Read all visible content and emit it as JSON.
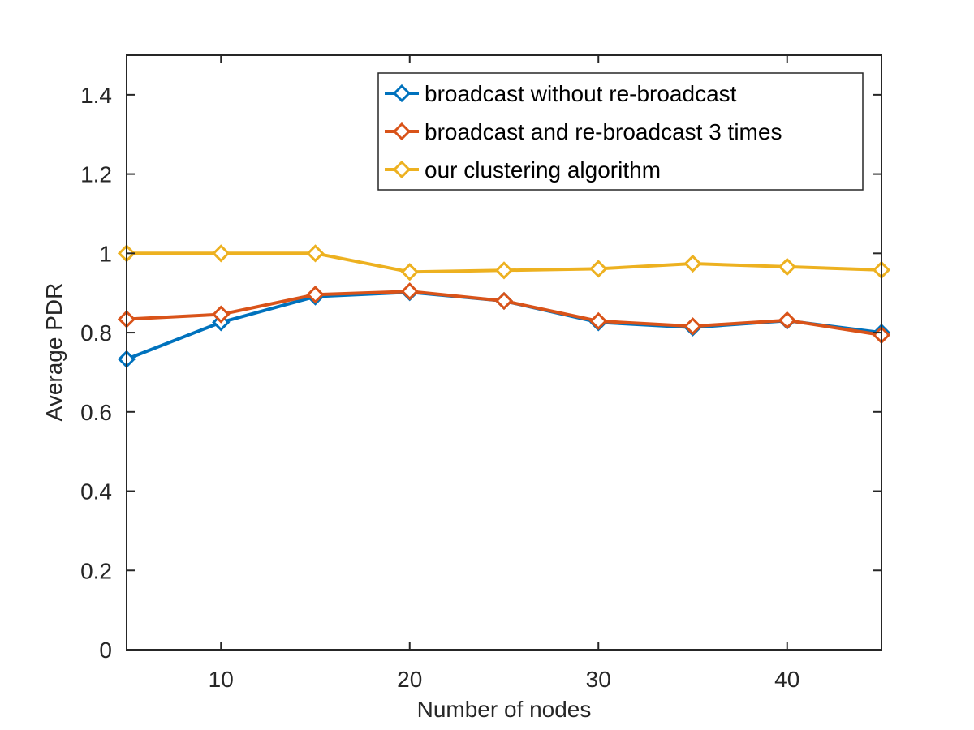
{
  "chart_data": {
    "type": "line",
    "title": "",
    "xlabel": "Number of nodes",
    "ylabel": "Average PDR",
    "xlim": [
      5,
      45
    ],
    "ylim": [
      0,
      1.5
    ],
    "xticks": [
      10,
      20,
      30,
      40
    ],
    "xtick_labels": [
      "10",
      "20",
      "30",
      "40"
    ],
    "yticks": [
      0,
      0.2,
      0.4,
      0.6,
      0.8,
      1.0,
      1.2,
      1.4
    ],
    "ytick_labels": [
      "0",
      "0.2",
      "0.4",
      "0.6",
      "0.8",
      "1",
      "1.2",
      "1.4"
    ],
    "grid": false,
    "legend_position": "top-right",
    "x": [
      5,
      10,
      15,
      20,
      25,
      30,
      35,
      40,
      45
    ],
    "series": [
      {
        "name": "broadcast without re-broadcast",
        "color": "#0072BD",
        "marker": "diamond",
        "values": [
          0.733,
          0.826,
          0.891,
          0.902,
          0.88,
          0.826,
          0.813,
          0.83,
          0.8
        ]
      },
      {
        "name": "broadcast and re-broadcast 3 times",
        "color": "#D95319",
        "marker": "diamond",
        "values": [
          0.834,
          0.846,
          0.896,
          0.904,
          0.88,
          0.829,
          0.816,
          0.831,
          0.794
        ]
      },
      {
        "name": "our clustering algorithm",
        "color": "#EDB120",
        "marker": "diamond",
        "values": [
          1.0,
          1.0,
          1.0,
          0.953,
          0.957,
          0.961,
          0.974,
          0.966,
          0.958
        ]
      }
    ]
  }
}
